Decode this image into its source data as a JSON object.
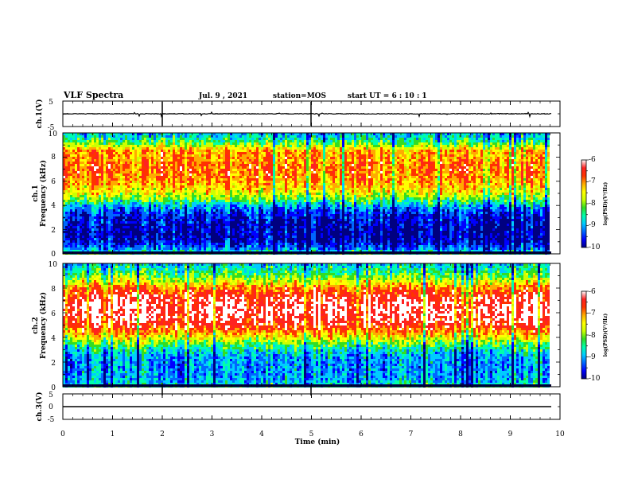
{
  "header": {
    "title": "VLF Spectra",
    "date": "Jul. 9 , 2021",
    "station": "station=MOS",
    "start": "start UT =  6 : 10 : 1"
  },
  "colors": {
    "colormap": [
      "#000080",
      "#0000ff",
      "#0066ff",
      "#00ccff",
      "#00ffaa",
      "#33dd22",
      "#ccff00",
      "#ffff00",
      "#ffaa00",
      "#ff3300",
      "#ff2222",
      "#ffffff"
    ]
  },
  "chart_data": [
    {
      "type": "line",
      "ylabel": "ch.1(V)",
      "ylim": [
        -5,
        5
      ],
      "yticks": [
        "5",
        "-5"
      ],
      "series": [
        {
          "values": [
            0,
            0
          ]
        }
      ]
    },
    {
      "type": "heatmap",
      "ylabel_line1": "ch.1",
      "ylabel_line2": "Frequency (kHz)",
      "ylim": [
        0,
        10
      ],
      "yticks": [
        "0",
        "2",
        "4",
        "6",
        "8",
        "10"
      ],
      "xlim": [
        0,
        10
      ],
      "profile_freq_khz": [
        0,
        0.5,
        1,
        1.5,
        2,
        2.5,
        3,
        3.5,
        4,
        4.5,
        5,
        5.5,
        6,
        6.5,
        7,
        7.5,
        8,
        8.5,
        9,
        9.5,
        10
      ],
      "profile_level": [
        -8.3,
        -9.2,
        -9.6,
        -9.7,
        -9.7,
        -9.6,
        -9.5,
        -9.3,
        -8.8,
        -8.1,
        -7.6,
        -7.3,
        -7.1,
        -7.0,
        -6.9,
        -7.0,
        -7.1,
        -7.1,
        -7.9,
        -8.5,
        -8.9
      ],
      "colorbar": {
        "label": "log(PSD)(V²/Hz)",
        "ticks": [
          "-6",
          "-7",
          "-8",
          "-9",
          "-10"
        ],
        "range": [
          -10,
          -6
        ]
      }
    },
    {
      "type": "heatmap",
      "ylabel_line1": "ch.2",
      "ylabel_line2": "Frequency (kHz)",
      "ylim": [
        0,
        10
      ],
      "yticks": [
        "0",
        "2",
        "4",
        "6",
        "8",
        "10"
      ],
      "xlim": [
        0,
        10
      ],
      "profile_freq_khz": [
        0,
        0.5,
        1,
        1.5,
        2,
        2.5,
        3,
        3.5,
        4,
        4.5,
        5,
        5.5,
        6,
        6.5,
        7,
        7.5,
        8,
        8.5,
        9,
        9.5,
        10
      ],
      "profile_level": [
        -8.5,
        -8.9,
        -9.0,
        -9.0,
        -9.0,
        -8.9,
        -8.6,
        -8.1,
        -7.5,
        -7.0,
        -6.6,
        -6.4,
        -6.3,
        -6.3,
        -6.4,
        -6.6,
        -7.0,
        -7.6,
        -8.1,
        -8.5,
        -8.8
      ],
      "colorbar": {
        "label": "log(PSD)(V²/Hz)",
        "ticks": [
          "-6",
          "-7",
          "-8",
          "-9",
          "-10"
        ],
        "range": [
          -10,
          -6
        ]
      }
    },
    {
      "type": "line",
      "ylabel": "ch.3(V)",
      "ylim": [
        -5,
        5
      ],
      "yticks": [
        "5",
        "0",
        "-5"
      ],
      "xlabel": "Time (min)",
      "xlim": [
        0,
        10
      ],
      "xticks": [
        "0",
        "1",
        "2",
        "3",
        "4",
        "5",
        "6",
        "7",
        "8",
        "9",
        "10"
      ],
      "series": [
        {
          "values": [
            0,
            0
          ]
        }
      ]
    }
  ]
}
